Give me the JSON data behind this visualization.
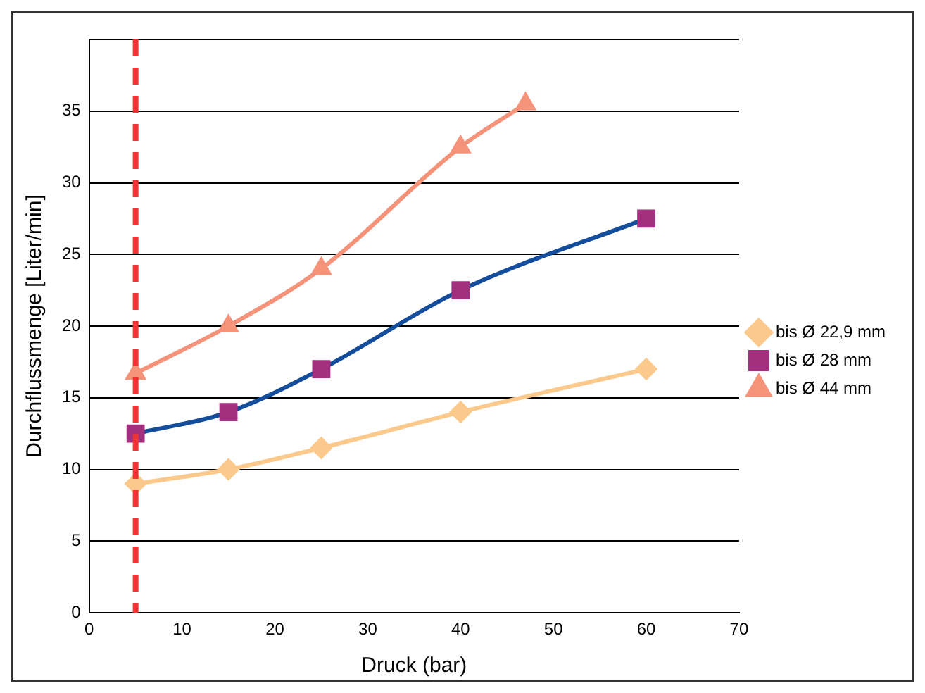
{
  "chart_data": {
    "type": "line",
    "xlabel": "Druck (bar)",
    "ylabel": "Durchflussmenge [Liter/min]",
    "xlim": [
      0,
      70
    ],
    "xticks": [
      0,
      10,
      20,
      30,
      40,
      50,
      60,
      70
    ],
    "ylim": [
      0,
      40
    ],
    "yticks": [
      0,
      5,
      10,
      15,
      20,
      25,
      30,
      35,
      {
        "value": 40,
        "label": null
      }
    ],
    "grid": "y",
    "legend": "right",
    "series": [
      {
        "name": "bis Ø 22,9 mm",
        "color": "#fbc98c",
        "marker": "diamond",
        "x": [
          5,
          15,
          25,
          40,
          60
        ],
        "values": [
          9,
          10,
          11.5,
          14,
          17
        ]
      },
      {
        "name": "bis Ø 28 mm",
        "color": "#144d9b",
        "colors": [
          "#a3307f",
          "#a3307f",
          "#a3307f",
          "#a3307f",
          "#a3307f"
        ],
        "marker": "square",
        "x": [
          5,
          15,
          25,
          40,
          60
        ],
        "values": [
          12.5,
          14,
          17,
          22.5,
          27.5
        ]
      },
      {
        "name": "bis Ø 44 mm",
        "color": "#f4937a",
        "marker": "triangle",
        "x": [
          5,
          15,
          25,
          40,
          47
        ],
        "values": [
          16.7,
          20,
          24,
          32.5,
          35.5
        ]
      }
    ],
    "ref_lines": [
      {
        "axis": "x",
        "value": 5,
        "color": "#ee3333",
        "line_style": "dashed"
      }
    ]
  }
}
